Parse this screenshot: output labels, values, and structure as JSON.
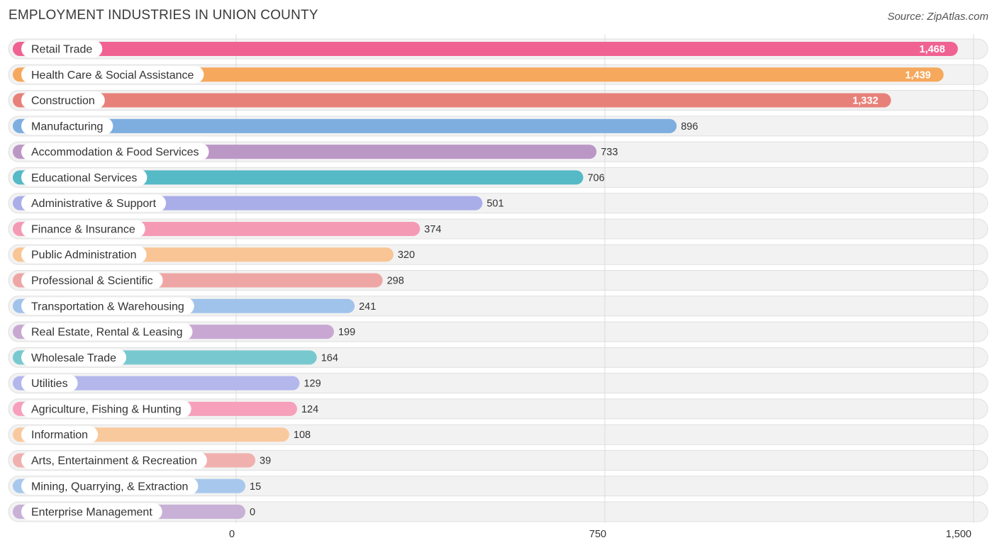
{
  "header": {
    "title": "EMPLOYMENT INDUSTRIES IN UNION COUNTY",
    "source": "Source: ZipAtlas.com"
  },
  "chart_data": {
    "type": "bar",
    "orientation": "horizontal",
    "title": "EMPLOYMENT INDUSTRIES IN UNION COUNTY",
    "xlabel": "",
    "ylabel": "",
    "xlim": [
      0,
      1500
    ],
    "ticks": [
      0,
      750,
      1500
    ],
    "tick_labels": [
      "0",
      "750",
      "1,500"
    ],
    "grid": true,
    "categories": [
      "Retail Trade",
      "Health Care & Social Assistance",
      "Construction",
      "Manufacturing",
      "Accommodation & Food Services",
      "Educational Services",
      "Administrative & Support",
      "Finance & Insurance",
      "Public Administration",
      "Professional & Scientific",
      "Transportation & Warehousing",
      "Real Estate, Rental & Leasing",
      "Wholesale Trade",
      "Utilities",
      "Agriculture, Fishing & Hunting",
      "Information",
      "Arts, Entertainment & Recreation",
      "Mining, Quarrying, & Extraction",
      "Enterprise Management"
    ],
    "values": [
      1468,
      1439,
      1332,
      896,
      733,
      706,
      501,
      374,
      320,
      298,
      241,
      199,
      164,
      129,
      124,
      108,
      39,
      15,
      0
    ],
    "value_labels": [
      "1,468",
      "1,439",
      "1,332",
      "896",
      "733",
      "706",
      "501",
      "374",
      "320",
      "298",
      "241",
      "199",
      "164",
      "129",
      "124",
      "108",
      "39",
      "15",
      "0"
    ],
    "colors": [
      "#f06292",
      "#f6a85c",
      "#e8807a",
      "#7eaee0",
      "#bb97c6",
      "#55b9c6",
      "#a9aee8",
      "#f59ab5",
      "#f9c595",
      "#eea6a4",
      "#9fc3ea",
      "#c8a8d2",
      "#78c9cf",
      "#b3b7ec",
      "#f6a0bb",
      "#f9c99e",
      "#f0b0ae",
      "#a7c8ec",
      "#c8b0d6"
    ]
  }
}
